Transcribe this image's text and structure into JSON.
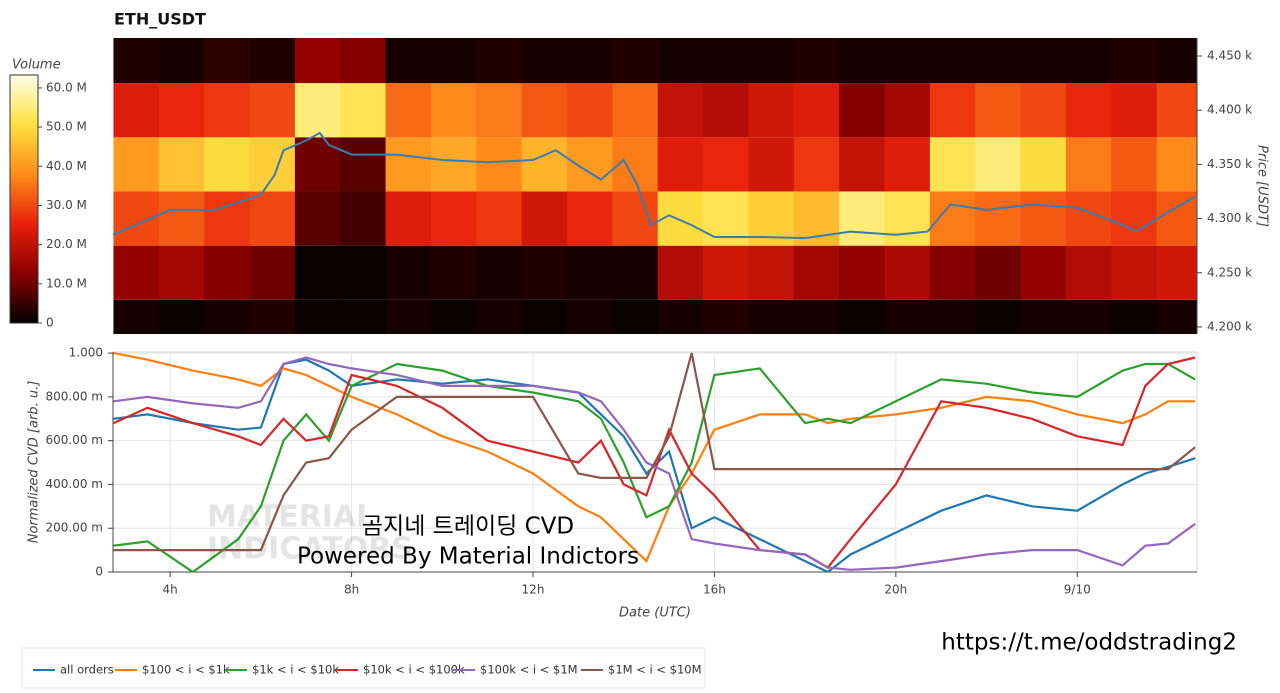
{
  "chart_data": [
    {
      "type": "heatmap",
      "title": "ETH_USDT",
      "y_label": "Price [USDT]",
      "xlim": [
        2.74,
        26.64
      ],
      "ylim": [
        4193.5,
        4466.6
      ],
      "yticks": [
        {
          "value": 4200,
          "label": "4.200 k"
        },
        {
          "value": 4250,
          "label": "4.250 k"
        },
        {
          "value": 4300,
          "label": "4.300 k"
        },
        {
          "value": 4350,
          "label": "4.350 k"
        },
        {
          "value": 4400,
          "label": "4.400 k"
        },
        {
          "value": 4450,
          "label": "4.450 k"
        }
      ],
      "x_bins": [
        2.75,
        3.75,
        4.75,
        5.75,
        6.75,
        7.75,
        8.75,
        9.75,
        10.75,
        11.75,
        12.75,
        13.75,
        14.75,
        15.75,
        16.75,
        17.75,
        18.75,
        19.75,
        20.75,
        21.75,
        22.75,
        23.75,
        24.75,
        25.75,
        26.75
      ],
      "y_bins": [
        4175,
        4225,
        4275,
        4325,
        4375,
        4425,
        4475
      ],
      "z": [
        [
          2,
          1,
          2,
          3,
          1,
          1,
          2,
          1,
          2,
          1,
          2,
          1,
          2,
          3,
          2,
          2,
          1,
          2,
          2,
          1,
          2,
          2,
          1,
          2
        ],
        [
          14,
          16,
          12,
          10,
          1,
          1,
          2,
          3,
          2,
          3,
          2,
          2,
          18,
          22,
          20,
          16,
          14,
          17,
          12,
          10,
          14,
          18,
          20,
          22
        ],
        [
          30,
          32,
          28,
          30,
          8,
          6,
          24,
          26,
          28,
          22,
          26,
          30,
          50,
          52,
          48,
          45,
          55,
          52,
          36,
          34,
          32,
          30,
          28,
          32
        ],
        [
          40,
          46,
          50,
          48,
          10,
          8,
          40,
          42,
          38,
          44,
          40,
          36,
          24,
          26,
          22,
          28,
          20,
          24,
          52,
          55,
          50,
          36,
          32,
          38
        ],
        [
          24,
          26,
          28,
          30,
          55,
          52,
          34,
          38,
          36,
          32,
          30,
          34,
          20,
          18,
          22,
          24,
          12,
          16,
          28,
          32,
          30,
          26,
          24,
          30
        ],
        [
          3,
          2,
          4,
          3,
          14,
          12,
          2,
          2,
          3,
          2,
          2,
          3,
          2,
          2,
          2,
          3,
          2,
          2,
          2,
          2,
          2,
          2,
          3,
          2
        ]
      ],
      "colormap": [
        "#000000",
        "#8b0000",
        "#e8200c",
        "#ff8c1a",
        "#ffe040",
        "#ffffe8"
      ],
      "colorbar": {
        "title": "Volume",
        "lim": [
          0,
          63.3
        ],
        "ticks": [
          0,
          {
            "value": 10,
            "label": "10.0 M"
          },
          {
            "value": 20,
            "label": "20.0 M"
          },
          {
            "value": 30,
            "label": "30.0 M"
          },
          {
            "value": 40,
            "label": "40.0 M"
          },
          {
            "value": 50,
            "label": "50.0 M"
          },
          {
            "value": 60,
            "label": "60.0 M"
          }
        ]
      },
      "line": {
        "color": "#3a7cb0",
        "x": [
          2.74,
          4,
          5,
          6,
          6.3,
          6.5,
          7,
          7.3,
          7.5,
          8,
          9,
          10,
          11,
          12,
          12.5,
          13,
          13.5,
          14,
          14.3,
          14.6,
          15,
          15.5,
          16,
          17,
          18,
          19,
          20,
          20.7,
          21.2,
          22,
          23,
          24,
          25,
          25.3,
          26,
          26.6
        ],
        "values": [
          4285,
          4308,
          4308,
          4322,
          4340,
          4363,
          4372,
          4379,
          4368,
          4359,
          4359,
          4354,
          4352,
          4354,
          4363,
          4349,
          4336,
          4354,
          4331,
          4294,
          4303,
          4294,
          4283,
          4283,
          4282,
          4288,
          4285,
          4288,
          4313,
          4308,
          4313,
          4310,
          4294,
          4288,
          4306,
          4320
        ]
      }
    },
    {
      "type": "line",
      "x_label": "Date (UTC)",
      "y_label": "Normalized CVD [arb. u.]",
      "xlim": [
        2.74,
        26.64
      ],
      "ylim": [
        0,
        1.005
      ],
      "grid": true,
      "xticks": [
        {
          "value": 4,
          "label": "4h"
        },
        {
          "value": 8,
          "label": "8h"
        },
        {
          "value": 12,
          "label": "12h"
        },
        {
          "value": 16,
          "label": "16h"
        },
        {
          "value": 20,
          "label": "20h"
        },
        {
          "value": 24,
          "label": "9/10"
        }
      ],
      "yticks": [
        0,
        {
          "value": 0.2,
          "label": "200.00 m"
        },
        {
          "value": 0.4,
          "label": "400.00 m"
        },
        {
          "value": 0.6,
          "label": "600.00 m"
        },
        {
          "value": 0.8,
          "label": "800.00 m"
        },
        {
          "value": 1,
          "label": "1.000"
        }
      ],
      "x": [
        2.75,
        3.5,
        4.5,
        5.5,
        6,
        6.5,
        7,
        7.5,
        8,
        9,
        10,
        11,
        12,
        13,
        13.5,
        14,
        14.5,
        15,
        15.5,
        16,
        17,
        18,
        18.5,
        19,
        20,
        21,
        22,
        23,
        24,
        25,
        25.5,
        26,
        26.6
      ],
      "series": [
        {
          "name": "all orders",
          "color": "#1f77b4",
          "values": [
            0.7,
            0.72,
            0.68,
            0.65,
            0.66,
            0.95,
            0.97,
            0.92,
            0.85,
            0.88,
            0.86,
            0.88,
            0.85,
            0.82,
            0.72,
            0.62,
            0.45,
            0.55,
            0.2,
            0.25,
            0.15,
            0.05,
            0.0,
            0.08,
            0.18,
            0.28,
            0.35,
            0.3,
            0.28,
            0.4,
            0.45,
            0.48,
            0.52
          ]
        },
        {
          "name": "$100 < i < $1k",
          "color": "#ff7f0e",
          "values": [
            1.0,
            0.97,
            0.92,
            0.88,
            0.85,
            0.93,
            0.9,
            0.85,
            0.8,
            0.72,
            0.62,
            0.55,
            0.45,
            0.3,
            0.25,
            0.15,
            0.05,
            0.3,
            0.45,
            0.65,
            0.72,
            0.72,
            0.68,
            0.7,
            0.72,
            0.75,
            0.8,
            0.78,
            0.72,
            0.68,
            0.72,
            0.78,
            0.78
          ]
        },
        {
          "name": "$1k < i < $10k",
          "color": "#2ca02c",
          "values": [
            0.12,
            0.14,
            0.0,
            0.15,
            0.3,
            0.6,
            0.72,
            0.6,
            0.85,
            0.95,
            0.92,
            0.85,
            0.82,
            0.78,
            0.7,
            0.5,
            0.25,
            0.3,
            0.5,
            0.9,
            0.93,
            0.68,
            0.7,
            0.68,
            0.78,
            0.88,
            0.86,
            0.82,
            0.8,
            0.92,
            0.95,
            0.95,
            0.88
          ]
        },
        {
          "name": "$10k < i < $100k",
          "color": "#d62728",
          "values": [
            0.68,
            0.75,
            0.68,
            0.62,
            0.58,
            0.7,
            0.6,
            0.62,
            0.9,
            0.85,
            0.75,
            0.6,
            0.55,
            0.5,
            0.6,
            0.4,
            0.35,
            0.65,
            0.45,
            0.35,
            0.1,
            0.08,
            0.02,
            0.15,
            0.4,
            0.78,
            0.75,
            0.7,
            0.62,
            0.58,
            0.85,
            0.95,
            0.98
          ]
        },
        {
          "name": "$100k < i < $1M",
          "color": "#9467bd",
          "values": [
            0.78,
            0.8,
            0.77,
            0.75,
            0.78,
            0.95,
            0.98,
            0.95,
            0.93,
            0.9,
            0.85,
            0.85,
            0.85,
            0.82,
            0.78,
            0.65,
            0.5,
            0.45,
            0.15,
            0.13,
            0.1,
            0.08,
            0.02,
            0.01,
            0.02,
            0.05,
            0.08,
            0.1,
            0.1,
            0.03,
            0.12,
            0.13,
            0.22
          ]
        },
        {
          "name": "$1M < i < $10M",
          "color": "#8c564b",
          "values": [
            0.1,
            0.1,
            0.1,
            0.1,
            0.1,
            0.35,
            0.5,
            0.52,
            0.65,
            0.8,
            0.8,
            0.8,
            0.8,
            0.45,
            0.43,
            0.43,
            0.43,
            0.62,
            1.0,
            0.47,
            0.47,
            0.47,
            0.47,
            0.47,
            0.47,
            0.47,
            0.47,
            0.47,
            0.47,
            0.47,
            0.47,
            0.47,
            0.57
          ]
        }
      ],
      "watermark": [
        "MATERIAL",
        "INDICATORS"
      ],
      "annotations": [
        "곰지네 트레이딩 CVD",
        "Powered By Material Indictors",
        "https://t.me/oddstrading2"
      ]
    }
  ]
}
